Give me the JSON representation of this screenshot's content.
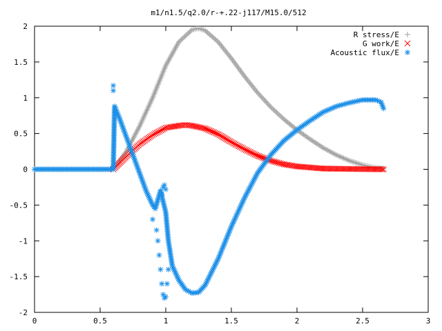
{
  "chart_data": {
    "type": "scatter",
    "title": "m1/n1.5/q2.0/r-+.22-j117/M15.0/512",
    "xlabel": "",
    "ylabel": "",
    "xlim": [
      0,
      3
    ],
    "ylim": [
      -2,
      2
    ],
    "xticks": [
      "0",
      "0.5",
      "1",
      "1.5",
      "2",
      "2.5",
      "3"
    ],
    "yticks": [
      "2",
      "1.5",
      "1",
      "0.5",
      "0",
      "-0.5",
      "-1",
      "-1.5",
      "-2"
    ],
    "grid": false,
    "legend": "top-right",
    "series": [
      {
        "name": "R stress/E",
        "marker": "plus",
        "color": "#a0a0a0",
        "x": [
          0.6,
          0.7,
          0.8,
          0.9,
          1.0,
          1.1,
          1.2,
          1.25,
          1.3,
          1.4,
          1.5,
          1.6,
          1.7,
          1.8,
          1.9,
          2.0,
          2.1,
          2.2,
          2.3,
          2.4,
          2.5,
          2.6,
          2.66
        ],
        "y": [
          0.0,
          0.25,
          0.6,
          1.0,
          1.45,
          1.78,
          1.95,
          1.97,
          1.94,
          1.78,
          1.55,
          1.3,
          1.07,
          0.87,
          0.7,
          0.55,
          0.42,
          0.3,
          0.2,
          0.12,
          0.06,
          0.02,
          0.01
        ]
      },
      {
        "name": "G work/E",
        "marker": "cross",
        "color": "#ff0000",
        "x": [
          0.6,
          0.7,
          0.8,
          0.9,
          1.0,
          1.1,
          1.15,
          1.2,
          1.3,
          1.4,
          1.5,
          1.6,
          1.7,
          1.8,
          1.9,
          2.0,
          2.2,
          2.4,
          2.66
        ],
        "y": [
          0.0,
          0.18,
          0.35,
          0.48,
          0.58,
          0.61,
          0.62,
          0.61,
          0.57,
          0.49,
          0.38,
          0.28,
          0.19,
          0.12,
          0.07,
          0.04,
          0.01,
          0.005,
          0.0
        ]
      },
      {
        "name": "Acoustic flux/E",
        "marker": "star",
        "color": "#1e90e8",
        "x": [
          0.0,
          0.6,
          0.61,
          0.65,
          0.7,
          0.75,
          0.8,
          0.85,
          0.9,
          0.92,
          0.96,
          1.0,
          1.02,
          1.05,
          1.1,
          1.15,
          1.2,
          1.25,
          1.3,
          1.4,
          1.5,
          1.6,
          1.7,
          1.8,
          1.9,
          2.0,
          2.1,
          2.2,
          2.3,
          2.4,
          2.5,
          2.6,
          2.64,
          2.66
        ],
        "y": [
          0.0,
          0.0,
          0.88,
          0.7,
          0.45,
          0.2,
          -0.05,
          -0.3,
          -0.5,
          -0.55,
          -0.3,
          -0.6,
          -1.0,
          -1.35,
          -1.55,
          -1.68,
          -1.73,
          -1.72,
          -1.62,
          -1.25,
          -0.8,
          -0.4,
          -0.05,
          0.2,
          0.4,
          0.55,
          0.68,
          0.8,
          0.88,
          0.93,
          0.97,
          0.97,
          0.94,
          0.85
        ]
      },
      {
        "name": "",
        "marker": "star",
        "color": "#1e90e8",
        "x": [
          0.6,
          0.6,
          0.9,
          0.93,
          0.94,
          0.95,
          0.96,
          0.97,
          0.98,
          0.99,
          1.0,
          1.01,
          1.02,
          0.97,
          0.98,
          0.99,
          1.0
        ],
        "y": [
          1.17,
          1.1,
          -0.7,
          -0.85,
          -1.0,
          -1.2,
          -1.4,
          -1.6,
          -1.75,
          -1.8,
          -1.78,
          -1.6,
          -1.4,
          -0.35,
          -0.25,
          -0.22,
          -0.28
        ]
      }
    ]
  }
}
